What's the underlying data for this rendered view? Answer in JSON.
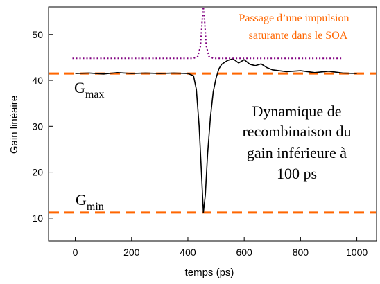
{
  "chart_data": {
    "type": "line",
    "xlabel": "temps (ps)",
    "ylabel": "Gain linéaire",
    "xlim": [
      -95,
      1070
    ],
    "ylim": [
      5,
      56
    ],
    "xticks": [
      0,
      200,
      400,
      600,
      800,
      1000
    ],
    "yticks": [
      10,
      20,
      30,
      40,
      50
    ],
    "grid": false,
    "series": [
      {
        "color": "#000000",
        "x": [
          0,
          50,
          100,
          150,
          200,
          250,
          300,
          350,
          400,
          420,
          430,
          440,
          448,
          455,
          462,
          470,
          480,
          490,
          500,
          510,
          520,
          540,
          560,
          580,
          600,
          620,
          640,
          660,
          680,
          700,
          750,
          800,
          850,
          900,
          950,
          1000
        ],
        "y": [
          41.5,
          41.6,
          41.4,
          41.7,
          41.5,
          41.6,
          41.5,
          41.6,
          41.5,
          41.0,
          38.0,
          30.0,
          20.0,
          11.2,
          15.0,
          24.0,
          32.0,
          37.5,
          40.5,
          42.5,
          43.5,
          44.3,
          44.7,
          43.8,
          44.5,
          43.5,
          43.2,
          43.6,
          42.8,
          42.3,
          41.9,
          42.1,
          41.7,
          42.0,
          41.6,
          41.5
        ]
      },
      {
        "color": "#800080",
        "dash": "dotted",
        "x": [
          -10,
          380,
          420,
          435,
          445,
          450,
          455,
          460,
          465,
          475,
          490,
          540,
          950
        ],
        "y": [
          44.8,
          44.8,
          44.8,
          45.2,
          47.5,
          52.5,
          56.0,
          52.5,
          47.5,
          45.2,
          44.8,
          44.8,
          44.8
        ]
      }
    ],
    "reference_lines": [
      {
        "y": 41.5,
        "color": "#ff6600",
        "dash": "dashed",
        "label_main": "G",
        "label_sub": "max"
      },
      {
        "y": 11.2,
        "color": "#ff6600",
        "dash": "dashed",
        "label_main": "G",
        "label_sub": "min"
      }
    ],
    "annotations": {
      "pulse_note": [
        "Passage d’une impulsion",
        "saturante dans le SOA"
      ],
      "pulse_note_color": "#ff6600",
      "dynamics_note": [
        "Dynamique de",
        "recombinaison du",
        "gain inférieure à",
        "100 ps"
      ]
    }
  }
}
